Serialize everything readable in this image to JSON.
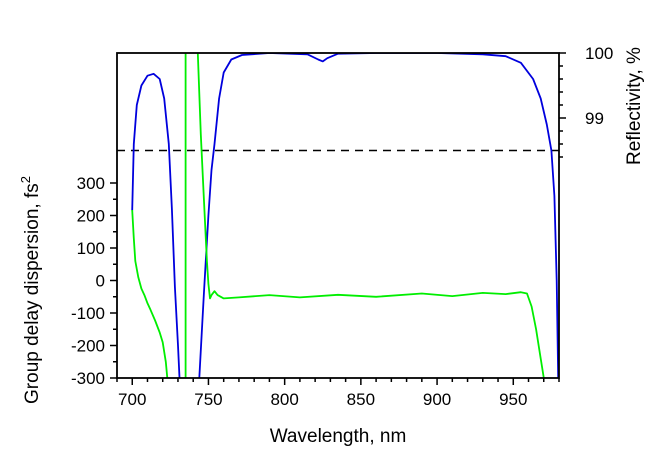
{
  "chart_data": {
    "type": "line",
    "xlabel": "Wavelength, nm",
    "ylabel_left": "Group delay dispersion, fs",
    "ylabel_left_sup": "2",
    "ylabel_right": "Reflectivity, %",
    "xlim": [
      690,
      980
    ],
    "ylim_left": [
      -300,
      700
    ],
    "ylim_right": [
      95,
      100
    ],
    "x_ticks": [
      700,
      750,
      800,
      850,
      900,
      950
    ],
    "y_left_ticks": [
      -300,
      -200,
      -100,
      0,
      100,
      200,
      300
    ],
    "y_right_ticks": [
      99,
      100
    ],
    "dashed_line_left_value": 400,
    "colors": {
      "gdd": "#00ee00",
      "reflectivity": "#0000dd",
      "dashed": "#000000"
    },
    "series": [
      {
        "name": "Reflectivity",
        "axis": "right",
        "points": [
          [
            700,
            97.58
          ],
          [
            701,
            98.6
          ],
          [
            703,
            99.2
          ],
          [
            706,
            99.5
          ],
          [
            710,
            99.65
          ],
          [
            714,
            99.68
          ],
          [
            718,
            99.6
          ],
          [
            721,
            99.3
          ],
          [
            724,
            98.6
          ],
          [
            726,
            97.6
          ],
          [
            728,
            96.4
          ],
          [
            730,
            95.5
          ],
          [
            731,
            95.0
          ],
          null,
          [
            744,
            95.0
          ],
          [
            747,
            96.3
          ],
          [
            750,
            97.5
          ],
          [
            752,
            98.2
          ],
          [
            754,
            98.6
          ],
          [
            757,
            99.3
          ],
          [
            760,
            99.7
          ],
          [
            765,
            99.9
          ],
          [
            772,
            99.97
          ],
          [
            790,
            100
          ],
          [
            815,
            99.98
          ],
          [
            822,
            99.9
          ],
          [
            825,
            99.87
          ],
          [
            828,
            99.92
          ],
          [
            835,
            99.99
          ],
          [
            860,
            100
          ],
          [
            900,
            100
          ],
          [
            930,
            99.98
          ],
          [
            945,
            99.95
          ],
          [
            955,
            99.85
          ],
          [
            963,
            99.6
          ],
          [
            968,
            99.3
          ],
          [
            972,
            98.9
          ],
          [
            975,
            98.5
          ],
          [
            977,
            97.8
          ],
          [
            978.5,
            96.5
          ],
          [
            979.5,
            95.0
          ]
        ]
      },
      {
        "name": "GDD",
        "axis": "left",
        "points": [
          [
            700,
            217
          ],
          [
            701,
            130
          ],
          [
            702,
            60
          ],
          [
            704,
            10
          ],
          [
            706,
            -25
          ],
          [
            708,
            -45
          ],
          [
            710,
            -70
          ],
          [
            712,
            -90
          ],
          [
            715,
            -123
          ],
          [
            718,
            -160
          ],
          [
            720,
            -190
          ],
          [
            722,
            -250
          ],
          [
            723,
            -300
          ],
          null,
          [
            735,
            -300
          ],
          [
            735,
            700
          ],
          null,
          [
            743,
            700
          ],
          [
            745,
            450
          ],
          [
            747,
            250
          ],
          [
            749,
            60
          ],
          [
            750,
            -10
          ],
          [
            751,
            -55
          ],
          [
            752,
            -45
          ],
          [
            754,
            -33
          ],
          [
            756,
            -45
          ],
          [
            760,
            -55
          ],
          [
            770,
            -52
          ],
          [
            790,
            -45
          ],
          [
            810,
            -52
          ],
          [
            835,
            -44
          ],
          [
            860,
            -50
          ],
          [
            890,
            -40
          ],
          [
            910,
            -48
          ],
          [
            930,
            -38
          ],
          [
            945,
            -42
          ],
          [
            955,
            -36
          ],
          [
            959,
            -40
          ],
          [
            962,
            -80
          ],
          [
            965,
            -150
          ],
          [
            968,
            -240
          ],
          [
            970,
            -300
          ]
        ]
      }
    ]
  }
}
